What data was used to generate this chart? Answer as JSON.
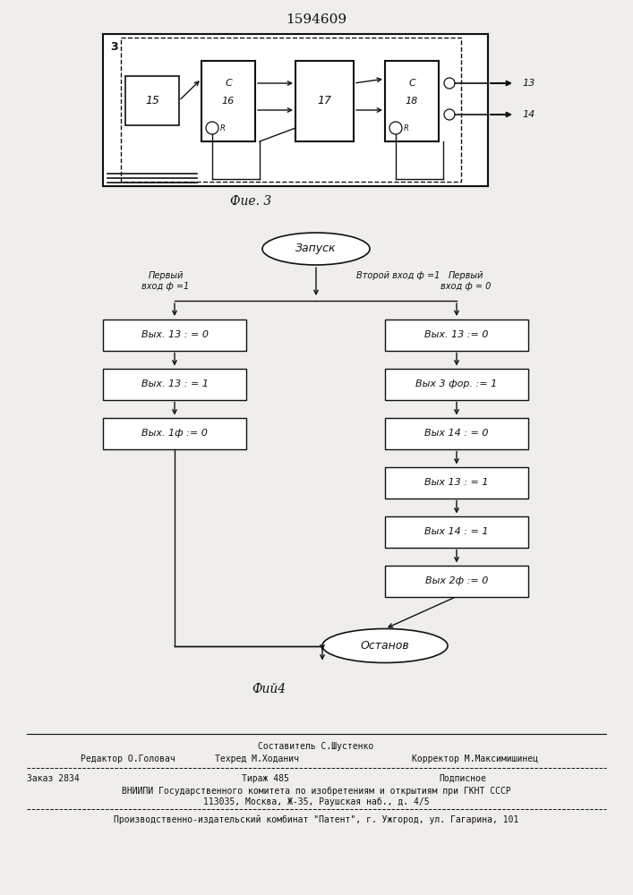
{
  "patent_number": "1594609",
  "fig3_label": "Фие. 3",
  "fig4_label": "Фий4",
  "bg_color": "#f0eeea",
  "line_color": "#111111",
  "text_color": "#111111",
  "footer": {
    "line1": "Составитель С.Шустенко",
    "line2_left": "Редактор О.Головач",
    "line2_mid": "Техред М.Ходанич",
    "line2_right": "Корректор М.Максимишинец",
    "line3": "Заказ 2834           Тираж 485                     Подписное",
    "line4": "ВНИИПИ Государственного комитета по изобретениям и открытиям при ГКНТ СССР",
    "line5": "113035, Москва, Ж-35, Раушская наб., д. 4/5",
    "line6": "Производственно-издательский комбинат \"Патент\", г. Ужгород, ул. Гагарина, 101"
  }
}
